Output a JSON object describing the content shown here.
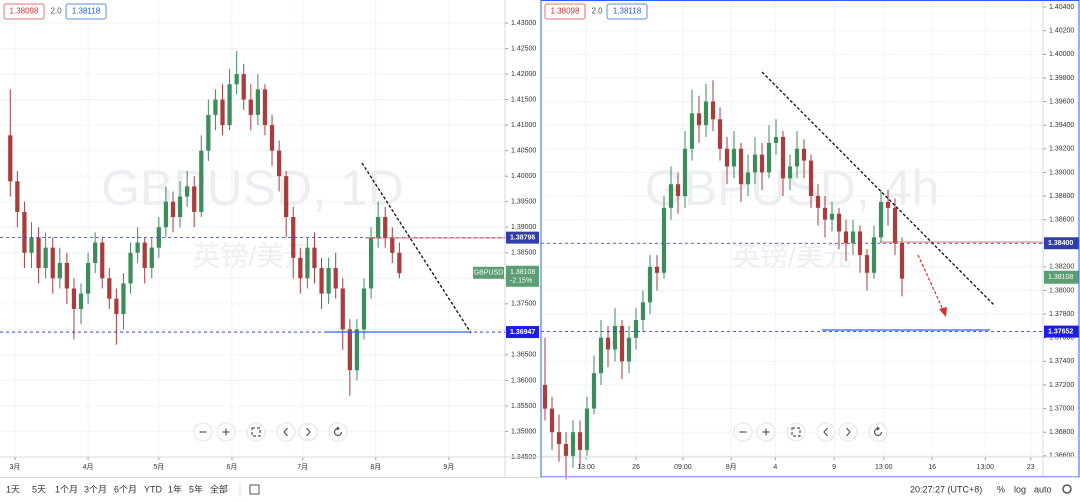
{
  "chart_data": [
    {
      "type": "candlestick",
      "watermark": "GBPUSD, 1D",
      "watermark_sub": "英镑/美元",
      "bid": {
        "value": 1.38098,
        "label": "1.38098"
      },
      "spread": {
        "value": 2,
        "label": "2.0"
      },
      "ask": {
        "value": 1.38118,
        "label": "1.38118"
      },
      "symbol": "GBPUSD",
      "last": {
        "value": 1.38108,
        "label": "1.38108"
      },
      "change": "-2.15%",
      "up_color": "#3c8c5c",
      "down_color": "#a93c3c",
      "grid": true,
      "xlim": [
        -6.36,
        207.8
      ],
      "ylim": [
        1.345,
        1.4345
      ],
      "xticks": [
        {
          "value": 0,
          "label": "3月"
        },
        {
          "value": 31,
          "label": "4月"
        },
        {
          "value": 61,
          "label": "5月"
        },
        {
          "value": 92,
          "label": "6月"
        },
        {
          "value": 122,
          "label": "7月"
        },
        {
          "value": 153,
          "label": "8月"
        },
        {
          "value": 184,
          "label": "9月"
        }
      ],
      "yticks": [
        {
          "value": 1.345,
          "label": "1.34500"
        },
        {
          "value": 1.35,
          "label": "1.35000"
        },
        {
          "value": 1.355,
          "label": "1.35500"
        },
        {
          "value": 1.36,
          "label": "1.36000"
        },
        {
          "value": 1.365,
          "label": "1.36500"
        },
        {
          "value": 1.37,
          "label": "1.37000"
        },
        {
          "value": 1.375,
          "label": "1.37500"
        },
        {
          "value": 1.38,
          "label": "1.38000"
        },
        {
          "value": 1.385,
          "label": "1.38500"
        },
        {
          "value": 1.39,
          "label": "1.39000"
        },
        {
          "value": 1.395,
          "label": "1.39500"
        },
        {
          "value": 1.4,
          "label": "1.40000"
        },
        {
          "value": 1.405,
          "label": "1.40500"
        },
        {
          "value": 1.41,
          "label": "1.41000"
        },
        {
          "value": 1.415,
          "label": "1.41500"
        },
        {
          "value": 1.42,
          "label": "1.42000"
        },
        {
          "value": 1.425,
          "label": "1.42500"
        },
        {
          "value": 1.43,
          "label": "1.43000"
        }
      ],
      "levels": [
        {
          "value": 1.38796,
          "label": "1.38796",
          "color": "#2f3ea8"
        },
        {
          "value": 1.36947,
          "label": "1.36947",
          "color": "#1d1ce0"
        }
      ],
      "x": [
        -2,
        1,
        4,
        7,
        10,
        13,
        16,
        19,
        22,
        25,
        28,
        31,
        34,
        37,
        40,
        43,
        46,
        49,
        52,
        55,
        58,
        61,
        64,
        67,
        70,
        73,
        76,
        79,
        82,
        85,
        88,
        91,
        94,
        97,
        100,
        103,
        106,
        109,
        112,
        115,
        118,
        121,
        124,
        127,
        130,
        133,
        136,
        139,
        142,
        145,
        148,
        151,
        154,
        157,
        160,
        163
      ],
      "open": [
        1.408,
        1.399,
        1.393,
        1.385,
        1.388,
        1.382,
        1.386,
        1.38,
        1.383,
        1.378,
        1.374,
        1.377,
        1.383,
        1.387,
        1.38,
        1.376,
        1.373,
        1.379,
        1.385,
        1.387,
        1.382,
        1.386,
        1.39,
        1.395,
        1.392,
        1.396,
        1.398,
        1.393,
        1.405,
        1.412,
        1.415,
        1.41,
        1.418,
        1.42,
        1.415,
        1.412,
        1.417,
        1.41,
        1.405,
        1.4,
        1.392,
        1.384,
        1.38,
        1.386,
        1.382,
        1.377,
        1.382,
        1.378,
        1.37,
        1.362,
        1.37,
        1.378,
        1.388,
        1.392,
        1.388,
        1.385
      ],
      "high": [
        1.417,
        1.401,
        1.395,
        1.391,
        1.39,
        1.389,
        1.388,
        1.386,
        1.385,
        1.38,
        1.379,
        1.385,
        1.389,
        1.388,
        1.382,
        1.378,
        1.381,
        1.387,
        1.39,
        1.388,
        1.388,
        1.392,
        1.398,
        1.397,
        1.399,
        1.401,
        1.4,
        1.408,
        1.415,
        1.417,
        1.418,
        1.421,
        1.4245,
        1.422,
        1.418,
        1.42,
        1.418,
        1.412,
        1.407,
        1.401,
        1.394,
        1.386,
        1.388,
        1.389,
        1.384,
        1.384,
        1.385,
        1.38,
        1.372,
        1.372,
        1.38,
        1.39,
        1.395,
        1.394,
        1.39,
        1.387
      ],
      "low": [
        1.396,
        1.39,
        1.382,
        1.382,
        1.379,
        1.38,
        1.377,
        1.378,
        1.375,
        1.368,
        1.371,
        1.375,
        1.381,
        1.378,
        1.374,
        1.367,
        1.37,
        1.377,
        1.383,
        1.379,
        1.38,
        1.384,
        1.388,
        1.389,
        1.39,
        1.394,
        1.39,
        1.392,
        1.403,
        1.409,
        1.408,
        1.409,
        1.416,
        1.413,
        1.409,
        1.41,
        1.408,
        1.402,
        1.397,
        1.388,
        1.38,
        1.377,
        1.378,
        1.379,
        1.374,
        1.375,
        1.376,
        1.366,
        1.357,
        1.36,
        1.368,
        1.376,
        1.386,
        1.386,
        1.383,
        1.38
      ],
      "close": [
        1.399,
        1.393,
        1.385,
        1.388,
        1.382,
        1.386,
        1.38,
        1.383,
        1.378,
        1.374,
        1.377,
        1.383,
        1.387,
        1.38,
        1.376,
        1.373,
        1.379,
        1.385,
        1.387,
        1.382,
        1.386,
        1.39,
        1.395,
        1.392,
        1.396,
        1.398,
        1.393,
        1.405,
        1.412,
        1.415,
        1.41,
        1.418,
        1.42,
        1.415,
        1.412,
        1.417,
        1.41,
        1.405,
        1.4,
        1.392,
        1.384,
        1.38,
        1.386,
        1.382,
        1.377,
        1.382,
        1.378,
        1.37,
        1.362,
        1.37,
        1.378,
        1.388,
        1.392,
        1.388,
        1.385,
        1.381
      ]
    },
    {
      "type": "candlestick",
      "watermark": "GBPUSD, 4h",
      "watermark_sub": "英镑/美元",
      "bid": {
        "value": 1.38098,
        "label": "1.38098"
      },
      "spread": {
        "value": 2,
        "label": "2.0"
      },
      "ask": {
        "value": 1.38118,
        "label": "1.38118"
      },
      "last": {
        "value": 1.38108,
        "label": "1.38108"
      },
      "up_color": "#3c8c5c",
      "down_color": "#a93c3c",
      "grid": true,
      "xlim": [
        -0.57,
        71.14
      ],
      "ylim": [
        1.3659,
        1.4046
      ],
      "xticks": [
        {
          "value": 5.86,
          "label": "13:00"
        },
        {
          "value": 13,
          "label": "26"
        },
        {
          "value": 19.7,
          "label": "09:00"
        },
        {
          "value": 26.6,
          "label": "8月"
        },
        {
          "value": 32.9,
          "label": "4"
        },
        {
          "value": 41.3,
          "label": "9"
        },
        {
          "value": 48.4,
          "label": "13:00"
        },
        {
          "value": 55.3,
          "label": "16"
        },
        {
          "value": 62.9,
          "label": "13:00"
        },
        {
          "value": 69.4,
          "label": "23"
        }
      ],
      "yticks": [
        {
          "value": 1.366,
          "label": "1.36600"
        },
        {
          "value": 1.368,
          "label": "1.36800"
        },
        {
          "value": 1.37,
          "label": "1.37000"
        },
        {
          "value": 1.372,
          "label": "1.37200"
        },
        {
          "value": 1.374,
          "label": "1.37400"
        },
        {
          "value": 1.376,
          "label": "1.37600"
        },
        {
          "value": 1.378,
          "label": "1.37800"
        },
        {
          "value": 1.38,
          "label": "1.38000"
        },
        {
          "value": 1.382,
          "label": "1.38200"
        },
        {
          "value": 1.384,
          "label": "1.38400"
        },
        {
          "value": 1.386,
          "label": "1.38600"
        },
        {
          "value": 1.388,
          "label": "1.38800"
        },
        {
          "value": 1.39,
          "label": "1.39000"
        },
        {
          "value": 1.392,
          "label": "1.39200"
        },
        {
          "value": 1.394,
          "label": "1.39400"
        },
        {
          "value": 1.396,
          "label": "1.39600"
        },
        {
          "value": 1.398,
          "label": "1.39800"
        },
        {
          "value": 1.4,
          "label": "1.40000"
        },
        {
          "value": 1.402,
          "label": "1.40200"
        },
        {
          "value": 1.404,
          "label": "1.40400"
        }
      ],
      "levels": [
        {
          "value": 1.384,
          "label": "1.38400",
          "color": "#2f3ea8"
        },
        {
          "value": 1.37652,
          "label": "1.37652",
          "color": "#1d1ce0"
        }
      ],
      "x": [
        0,
        1,
        2,
        3,
        4,
        5,
        6,
        7,
        8,
        9,
        10,
        11,
        12,
        13,
        14,
        15,
        16,
        17,
        18,
        19,
        20,
        21,
        22,
        23,
        24,
        25,
        26,
        27,
        28,
        29,
        30,
        31,
        32,
        33,
        34,
        35,
        36,
        37,
        38,
        39,
        40,
        41,
        42,
        43,
        44,
        45,
        46,
        47,
        48,
        49,
        50,
        51
      ],
      "open": [
        1.372,
        1.37,
        1.368,
        1.367,
        1.366,
        1.368,
        1.3665,
        1.37,
        1.373,
        1.376,
        1.375,
        1.377,
        1.374,
        1.376,
        1.3775,
        1.379,
        1.382,
        1.3815,
        1.387,
        1.389,
        1.388,
        1.392,
        1.395,
        1.394,
        1.396,
        1.3945,
        1.392,
        1.3905,
        1.392,
        1.389,
        1.39,
        1.3915,
        1.39,
        1.3925,
        1.393,
        1.3895,
        1.3905,
        1.392,
        1.391,
        1.388,
        1.387,
        1.386,
        1.3865,
        1.385,
        1.384,
        1.385,
        1.383,
        1.3815,
        1.3845,
        1.3875,
        1.387,
        1.384
      ],
      "high": [
        1.376,
        1.371,
        1.3695,
        1.368,
        1.369,
        1.369,
        1.371,
        1.3745,
        1.3775,
        1.377,
        1.3785,
        1.3775,
        1.377,
        1.3785,
        1.38,
        1.383,
        1.383,
        1.388,
        1.3905,
        1.39,
        1.3935,
        1.397,
        1.3965,
        1.3975,
        1.3978,
        1.3955,
        1.393,
        1.3935,
        1.3925,
        1.3915,
        1.393,
        1.3925,
        1.394,
        1.3945,
        1.3935,
        1.3915,
        1.3935,
        1.3928,
        1.3915,
        1.389,
        1.388,
        1.3875,
        1.387,
        1.386,
        1.386,
        1.3855,
        1.3835,
        1.3855,
        1.3885,
        1.3885,
        1.3878,
        1.3845
      ],
      "low": [
        1.369,
        1.3665,
        1.3655,
        1.364,
        1.365,
        1.365,
        1.366,
        1.3695,
        1.372,
        1.3735,
        1.374,
        1.3725,
        1.373,
        1.375,
        1.3765,
        1.378,
        1.38,
        1.381,
        1.386,
        1.3865,
        1.387,
        1.391,
        1.3925,
        1.393,
        1.3935,
        1.391,
        1.389,
        1.3895,
        1.3875,
        1.388,
        1.389,
        1.3885,
        1.3895,
        1.3915,
        1.388,
        1.3885,
        1.3895,
        1.3895,
        1.387,
        1.3855,
        1.3845,
        1.385,
        1.3835,
        1.3825,
        1.383,
        1.3815,
        1.38,
        1.381,
        1.384,
        1.3855,
        1.383,
        1.3795
      ],
      "close": [
        1.37,
        1.368,
        1.367,
        1.366,
        1.368,
        1.3665,
        1.37,
        1.373,
        1.376,
        1.375,
        1.377,
        1.374,
        1.376,
        1.3775,
        1.379,
        1.382,
        1.3815,
        1.387,
        1.389,
        1.388,
        1.392,
        1.395,
        1.394,
        1.396,
        1.3945,
        1.392,
        1.3905,
        1.392,
        1.389,
        1.39,
        1.3915,
        1.39,
        1.3925,
        1.393,
        1.3895,
        1.3905,
        1.392,
        1.391,
        1.388,
        1.387,
        1.386,
        1.3865,
        1.385,
        1.384,
        1.385,
        1.383,
        1.3815,
        1.3845,
        1.3875,
        1.387,
        1.384,
        1.381
      ]
    }
  ],
  "toolbar": {
    "ranges": [
      "1天",
      "5天",
      "1个月",
      "3个月",
      "6个月",
      "YTD",
      "1年",
      "5年",
      "全部"
    ],
    "time": "20:27:27 (UTC+8)",
    "options": [
      "%",
      "log",
      "auto"
    ]
  }
}
